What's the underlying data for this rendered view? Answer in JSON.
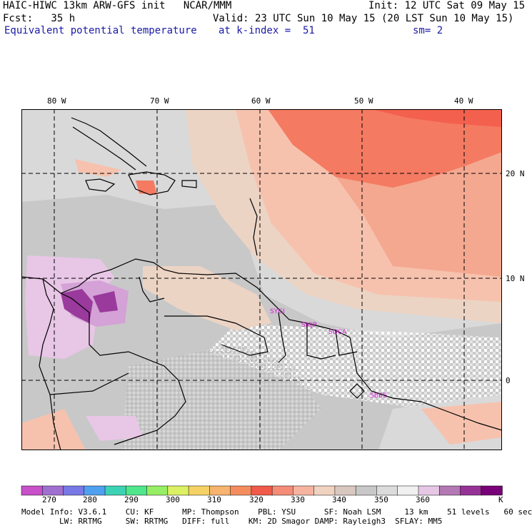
{
  "header": {
    "line1_left": "HAIC-HIWC 13km ARW-GFS init   NCAR/MMM",
    "line1_right": "Init: 12 UTC Sat 09 May 15",
    "line2_left": "Fcst:   35 h",
    "line2_right": "Valid: 23 UTC Sun 10 May 15 (20 LST Sun 10 May 15)",
    "line3_left": "Equivalent potential temperature",
    "line3_mid": "at k-index =  51",
    "line3_right": "sm= 2"
  },
  "map": {
    "lon_labels": [
      "80 W",
      "70 W",
      "60 W",
      "50 W",
      "40 W"
    ],
    "lat_labels": [
      "20 N",
      "10 N",
      "0"
    ],
    "stations": [
      "SYGI",
      "SMJP",
      "SOCA",
      "SBBE"
    ],
    "colors": {
      "background_gray": "#c8c8c8",
      "light_gray": "#d9d9d9",
      "pale_beige": "#ecd4c4",
      "peach": "#f6c2ae",
      "salmon": "#f4a890",
      "coral": "#f47a62",
      "hot_coral": "#f4604e",
      "lavender": "#e8c6e6",
      "light_purple": "#d4a2d6",
      "purple": "#9a3a9c",
      "coast": "#000000",
      "station": "#d21ed2"
    }
  },
  "colorbar": {
    "labels": [
      "270",
      "280",
      "290",
      "300",
      "310",
      "320",
      "330",
      "340",
      "350",
      "360"
    ],
    "unit": "K",
    "colors": [
      "#c850c8",
      "#a070d0",
      "#7878e6",
      "#50a0f0",
      "#3cd2b4",
      "#50e68c",
      "#96ee64",
      "#dcf064",
      "#f6d264",
      "#f6b46e",
      "#f48c5e",
      "#f05a4a",
      "#f48c78",
      "#f6b4a0",
      "#f0d2c0",
      "#d8c8c0",
      "#c8c8c8",
      "#dcdcdc",
      "#f0f0f0",
      "#e6c8e6",
      "#b478b4",
      "#963296",
      "#780078"
    ]
  },
  "model_info": {
    "line1": "Model Info: V3.6.1    CU: KF      MP: Thompson    PBL: YSU      SF: Noah LSM     13 km    51 levels   60 sec",
    "line2": "        LW: RRTMG     SW: RRTMG   DIFF: full    KM: 2D Smagor DAMP: Rayleigh3  SFLAY: MM5"
  }
}
